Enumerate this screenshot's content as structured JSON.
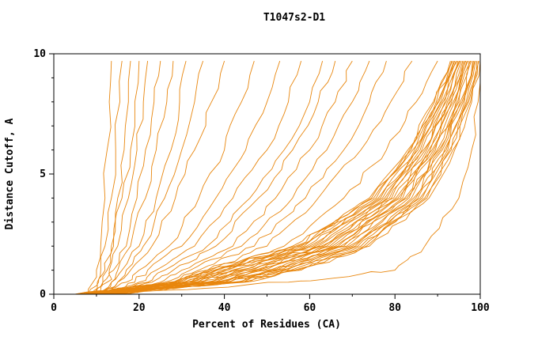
{
  "chart_data": {
    "type": "line",
    "title": "T1047s2-D1",
    "xlabel": "Percent of Residues (CA)",
    "ylabel": "Distance Cutoff, A",
    "xlim": [
      0,
      100
    ],
    "ylim": [
      0,
      10
    ],
    "x_ticks": [
      0,
      20,
      40,
      60,
      80,
      100
    ],
    "y_ticks": [
      0,
      5,
      10
    ],
    "x_minor_step": 10,
    "y_minor_step": 1,
    "grid": false,
    "legend": "none",
    "line_color": "#e8860d",
    "series_note": "Each series is one model curve: x = percent of CA residues (read off plot) at each y distance cutoff in 'cutoffs'.",
    "cutoffs": [
      0,
      0.5,
      1,
      2,
      4,
      6,
      8,
      9.7
    ],
    "series": [
      [
        8,
        9.2,
        10,
        11,
        12,
        12.5,
        13,
        13.5
      ],
      [
        9,
        10.2,
        11,
        12,
        13.5,
        14.5,
        15.5,
        16
      ],
      [
        8,
        10.5,
        12,
        13.5,
        15,
        16.5,
        17.5,
        18
      ],
      [
        10,
        11.5,
        12.5,
        14,
        16,
        18,
        19,
        20
      ],
      [
        9,
        11.5,
        13,
        15,
        17.5,
        19.5,
        21,
        22
      ],
      [
        10,
        12.5,
        14,
        17,
        19.5,
        21.5,
        23.5,
        25
      ],
      [
        11,
        13.5,
        15,
        18,
        21.5,
        24,
        26.5,
        28
      ],
      [
        10,
        13.5,
        16,
        20,
        24,
        27.5,
        29.5,
        31
      ],
      [
        12,
        15,
        17,
        21,
        26,
        30,
        33,
        35
      ],
      [
        11,
        15,
        18,
        23,
        28.5,
        33,
        37,
        40
      ],
      [
        10,
        17,
        20,
        27,
        34,
        40,
        44,
        47
      ],
      [
        12,
        19,
        22,
        30,
        38,
        45,
        50,
        53
      ],
      [
        11,
        20,
        24,
        33,
        42,
        50,
        55,
        58
      ],
      [
        13,
        22,
        26,
        36,
        46,
        54,
        60,
        63
      ],
      [
        12,
        23,
        28,
        38,
        48,
        56,
        62,
        66
      ],
      [
        14,
        25,
        30,
        42,
        52,
        60,
        66,
        70
      ],
      [
        13,
        26,
        32,
        44,
        56,
        64,
        70,
        74
      ],
      [
        15,
        28,
        34,
        47,
        59,
        68,
        74,
        78
      ],
      [
        14,
        29,
        36,
        50,
        62,
        72,
        79,
        84
      ],
      [
        16,
        31,
        38,
        54,
        68,
        78,
        85,
        90
      ],
      [
        5,
        27,
        36,
        56,
        74,
        83,
        89,
        93
      ],
      [
        5.2,
        28,
        36.8,
        56.7,
        74.5,
        83.4,
        89.3,
        93.3
      ],
      [
        5.4,
        28.6,
        37.6,
        57.3,
        75,
        83.8,
        89.7,
        93.5
      ],
      [
        5.7,
        29.2,
        38.4,
        58,
        75.6,
        84.2,
        90,
        93.8
      ],
      [
        5.9,
        30,
        39.3,
        58.7,
        76.1,
        84.6,
        90.3,
        94
      ],
      [
        6.1,
        30.6,
        40.1,
        59.3,
        76.6,
        85,
        90.7,
        94.3
      ],
      [
        6.3,
        31.2,
        40.9,
        60,
        77.1,
        85.4,
        91,
        94.6
      ],
      [
        6.6,
        31.9,
        41.7,
        60.7,
        77.6,
        85.9,
        91.3,
        94.8
      ],
      [
        6.8,
        32.5,
        42.5,
        61.3,
        78.1,
        86.3,
        91.7,
        95.1
      ],
      [
        7,
        33.1,
        43.3,
        62,
        78.7,
        86.7,
        92,
        95.3
      ],
      [
        7.2,
        33.8,
        44.1,
        62.7,
        79.2,
        87.1,
        92.3,
        95.6
      ],
      [
        7.4,
        34.5,
        45,
        63.3,
        79.7,
        87.5,
        92.7,
        95.9
      ],
      [
        7.7,
        35.1,
        45.8,
        64,
        80.2,
        87.9,
        93,
        96.1
      ],
      [
        7.9,
        35.8,
        46.6,
        64.7,
        80.7,
        88.3,
        93.3,
        96.4
      ],
      [
        8.1,
        36.4,
        47.4,
        65.3,
        81.3,
        88.7,
        93.7,
        96.6
      ],
      [
        8.3,
        37,
        48.2,
        66,
        81.8,
        89.1,
        94,
        96.9
      ],
      [
        8.6,
        37.7,
        49,
        66.7,
        82.3,
        89.5,
        94.3,
        97.1
      ],
      [
        8.8,
        38.4,
        49.9,
        67.3,
        82.8,
        89.9,
        94.7,
        97.4
      ],
      [
        9,
        39,
        50.7,
        68,
        83.3,
        90.3,
        95,
        97.7
      ],
      [
        9.2,
        39.7,
        51.5,
        68.7,
        83.9,
        90.7,
        95.3,
        97.9
      ],
      [
        9.4,
        40.3,
        52.3,
        69.3,
        84.4,
        91.1,
        95.7,
        98.2
      ],
      [
        9.7,
        41,
        53.1,
        70,
        84.9,
        91.6,
        96,
        98.4
      ],
      [
        9.9,
        41.6,
        53.9,
        70.7,
        85.4,
        92,
        96.3,
        98.7
      ],
      [
        10.1,
        42.2,
        54.7,
        71.3,
        85.9,
        92.4,
        96.7,
        98.9
      ],
      [
        10.3,
        42.9,
        55.6,
        72,
        86.4,
        92.8,
        97,
        99.2
      ],
      [
        10.6,
        43.6,
        56.4,
        72.7,
        87,
        93.2,
        97.3,
        99.5
      ],
      [
        10.8,
        44.2,
        57.2,
        73.3,
        87.5,
        93.6,
        97.7,
        99.7
      ],
      [
        11,
        44.9,
        58,
        74,
        88,
        94,
        98,
        100
      ],
      [
        12,
        55,
        80,
        87,
        95,
        98,
        99.5,
        100
      ]
    ]
  }
}
